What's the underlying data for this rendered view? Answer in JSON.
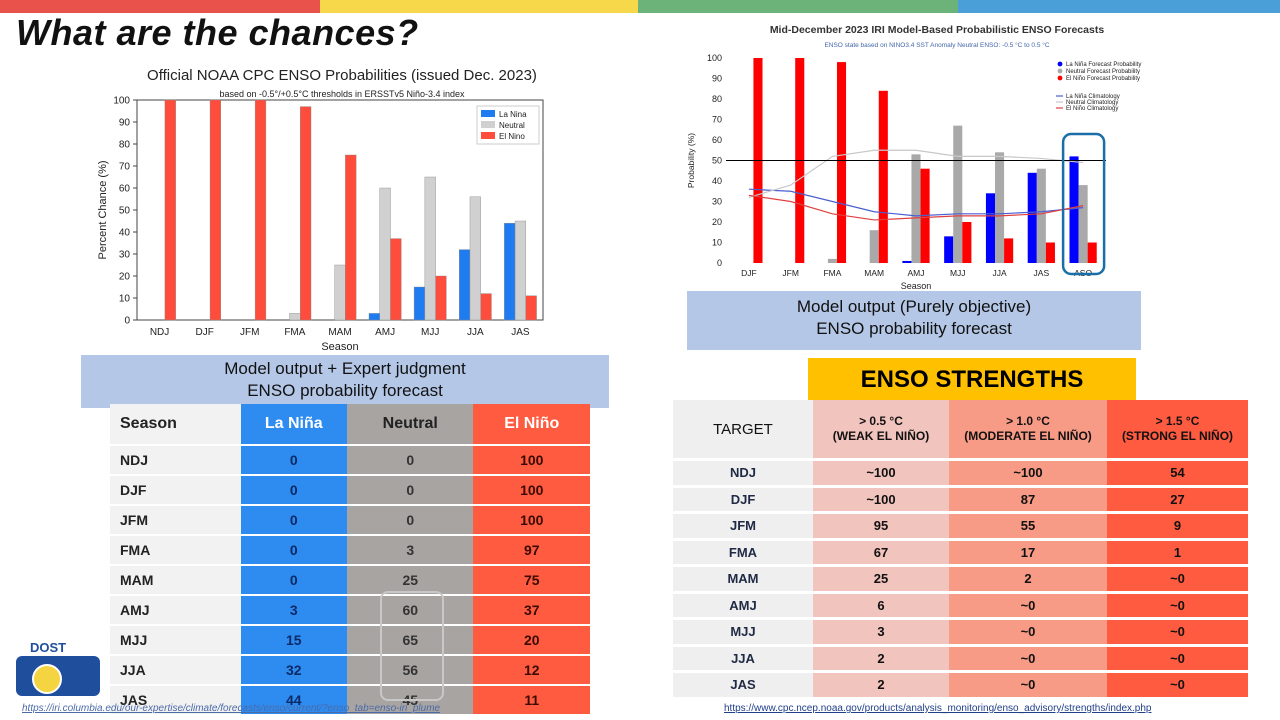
{
  "slide": {
    "title": "What are the chances?",
    "strip_colors": [
      "#e8524a",
      "#f6d84a",
      "#6cb37a",
      "#4a9fd8"
    ]
  },
  "noaa_chart": {
    "label_lines": [
      "Model output + Expert judgment",
      "ENSO probability forecast"
    ]
  },
  "iri_chart": {
    "label_lines": [
      "Model output (Purely objective)",
      "ENSO probability forecast"
    ]
  },
  "chart_data": [
    {
      "type": "bar",
      "title": "Official NOAA CPC ENSO Probabilities (issued Dec. 2023)",
      "subtitle": "based on -0.5°/+0.5°C thresholds in ERSSTv5 Niño-3.4 index",
      "xlabel": "Season",
      "ylabel": "Percent Chance (%)",
      "ylim": [
        0,
        100
      ],
      "yticks": [
        0,
        10,
        20,
        30,
        40,
        50,
        60,
        70,
        80,
        90,
        100
      ],
      "legend_position": "top-right",
      "categories": [
        "NDJ",
        "DJF",
        "JFM",
        "FMA",
        "MAM",
        "AMJ",
        "MJJ",
        "JJA",
        "JAS"
      ],
      "series": [
        {
          "name": "La Nina",
          "color": "#1e7cf0",
          "values": [
            0,
            0,
            0,
            0,
            0,
            3,
            15,
            32,
            44
          ]
        },
        {
          "name": "Neutral",
          "color": "#d0d0d0",
          "values": [
            0,
            0,
            0,
            3,
            25,
            60,
            65,
            56,
            45
          ]
        },
        {
          "name": "El Nino",
          "color": "#ff4d3d",
          "values": [
            100,
            100,
            100,
            97,
            75,
            37,
            20,
            12,
            11
          ]
        }
      ]
    },
    {
      "type": "bar",
      "title": "Mid-December 2023 IRI Model-Based Probabilistic ENSO Forecasts",
      "subtitle": "ENSO state based on NINO3.4 SST Anomaly Neutral ENSO: -0.5 °C to 0.5 °C",
      "xlabel": "Season",
      "ylabel": "Probability (%)",
      "ylim": [
        0,
        100
      ],
      "yticks": [
        0,
        10,
        20,
        30,
        40,
        50,
        60,
        70,
        80,
        90,
        100
      ],
      "legend_position": "top-right",
      "reference_line": 50,
      "categories": [
        "DJF",
        "JFM",
        "FMA",
        "MAM",
        "AMJ",
        "MJJ",
        "JJA",
        "JAS",
        "ASO"
      ],
      "series": [
        {
          "name": "La Niña Forecast Probability",
          "color": "#0000ff",
          "values": [
            0,
            0,
            0,
            0,
            1,
            13,
            34,
            44,
            52
          ]
        },
        {
          "name": "Neutral Forecast Probability",
          "color": "#a9a9a9",
          "values": [
            0,
            0,
            2,
            16,
            53,
            67,
            54,
            46,
            38
          ]
        },
        {
          "name": "El Niño Forecast Probability",
          "color": "#ff0000",
          "values": [
            100,
            100,
            98,
            84,
            46,
            20,
            12,
            10,
            10
          ]
        }
      ],
      "lines": [
        {
          "name": "La Niña Climatology",
          "color": "#4a5fd0",
          "values": [
            36,
            35,
            30,
            25,
            23,
            24,
            24,
            25,
            27
          ]
        },
        {
          "name": "Neutral Climatology",
          "color": "#c8c8c8",
          "values": [
            32,
            38,
            52,
            55,
            55,
            52,
            52,
            51,
            49
          ]
        },
        {
          "name": "El Niño Climatology",
          "color": "#e04040",
          "values": [
            33,
            30,
            24,
            21,
            22,
            23,
            23,
            24,
            28
          ]
        }
      ]
    }
  ],
  "prob_table": {
    "headers": [
      "Season",
      "La Niña",
      "Neutral",
      "El Niño"
    ],
    "rows": [
      [
        "NDJ",
        "0",
        "0",
        "100"
      ],
      [
        "DJF",
        "0",
        "0",
        "100"
      ],
      [
        "JFM",
        "0",
        "0",
        "100"
      ],
      [
        "FMA",
        "0",
        "3",
        "97"
      ],
      [
        "MAM",
        "0",
        "25",
        "75"
      ],
      [
        "AMJ",
        "3",
        "60",
        "37"
      ],
      [
        "MJJ",
        "15",
        "65",
        "20"
      ],
      [
        "JJA",
        "32",
        "56",
        "12"
      ],
      [
        "JAS",
        "44",
        "45",
        "11"
      ]
    ]
  },
  "strength": {
    "title": "ENSO STRENGTHS",
    "headers": {
      "target": "TARGET",
      "weak_top": "> 0.5 °C",
      "weak_bottom": "(WEAK EL NIÑO)",
      "moderate_top": "> 1.0 °C",
      "moderate_bottom": "(MODERATE EL NIÑO)",
      "strong_top": "> 1.5 °C",
      "strong_bottom": "(STRONG EL NIÑO)"
    },
    "rows": [
      [
        "NDJ",
        "~100",
        "~100",
        "54"
      ],
      [
        "DJF",
        "~100",
        "87",
        "27"
      ],
      [
        "JFM",
        "95",
        "55",
        "9"
      ],
      [
        "FMA",
        "67",
        "17",
        "1"
      ],
      [
        "MAM",
        "25",
        "2",
        "~0"
      ],
      [
        "AMJ",
        "6",
        "~0",
        "~0"
      ],
      [
        "MJJ",
        "3",
        "~0",
        "~0"
      ],
      [
        "JJA",
        "2",
        "~0",
        "~0"
      ],
      [
        "JAS",
        "2",
        "~0",
        "~0"
      ]
    ]
  },
  "links": {
    "iri": "https://iri.columbia.edu/our-expertise/climate/forecasts/enso/current/?enso_tab=enso-iri_plume",
    "cpc": "https://www.cpc.ncep.noaa.gov/products/analysis_monitoring/enso_advisory/strengths/index.php"
  },
  "logo": {
    "text": "DOST"
  }
}
